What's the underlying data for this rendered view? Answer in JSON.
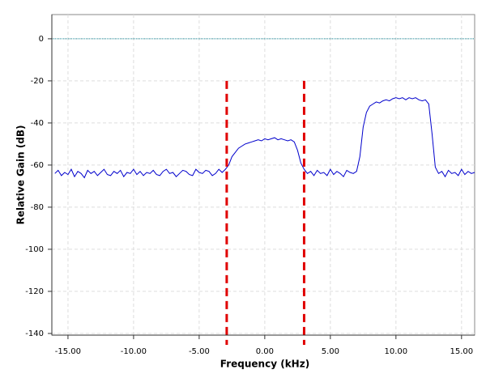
{
  "chart_data": {
    "type": "line",
    "xlabel": "Frequency (kHz)",
    "ylabel": "Relative Gain (dB)",
    "x": [
      -16,
      -15.75,
      -15.5,
      -15.25,
      -15,
      -14.75,
      -14.5,
      -14.25,
      -14,
      -13.75,
      -13.5,
      -13.25,
      -13,
      -12.75,
      -12.5,
      -12.25,
      -12,
      -11.75,
      -11.5,
      -11.25,
      -11,
      -10.75,
      -10.5,
      -10.25,
      -10,
      -9.75,
      -9.5,
      -9.25,
      -9,
      -8.75,
      -8.5,
      -8.25,
      -8,
      -7.75,
      -7.5,
      -7.25,
      -7,
      -6.75,
      -6.5,
      -6.25,
      -6,
      -5.75,
      -5.5,
      -5.25,
      -5,
      -4.75,
      -4.5,
      -4.25,
      -4,
      -3.75,
      -3.5,
      -3.25,
      -3,
      -2.75,
      -2.5,
      -2.25,
      -2,
      -1.75,
      -1.5,
      -1.25,
      -1,
      -0.75,
      -0.5,
      -0.25,
      0,
      0.25,
      0.5,
      0.75,
      1,
      1.25,
      1.5,
      1.75,
      2,
      2.25,
      2.5,
      2.75,
      3,
      3.25,
      3.5,
      3.75,
      4,
      4.25,
      4.5,
      4.75,
      5,
      5.25,
      5.5,
      5.75,
      6,
      6.25,
      6.5,
      6.75,
      7,
      7.25,
      7.5,
      7.75,
      8,
      8.25,
      8.5,
      8.75,
      9,
      9.25,
      9.5,
      9.75,
      10,
      10.25,
      10.5,
      10.75,
      11,
      11.25,
      11.5,
      11.75,
      12,
      12.25,
      12.5,
      12.75,
      13,
      13.25,
      13.5,
      13.75,
      14,
      14.25,
      14.5,
      14.75,
      15,
      15.25,
      15.5,
      15.75,
      16
    ],
    "values": [
      -64,
      -62.5,
      -65,
      -63.5,
      -64.5,
      -62,
      -65.5,
      -63,
      -64,
      -66,
      -62.5,
      -64,
      -63,
      -65,
      -63.5,
      -62,
      -64.5,
      -65,
      -63,
      -64,
      -62.5,
      -65.5,
      -63.5,
      -64,
      -62,
      -64.5,
      -63,
      -65,
      -63.5,
      -64,
      -62.5,
      -64.5,
      -65,
      -63,
      -62,
      -64,
      -63.5,
      -65.5,
      -64,
      -62.5,
      -63,
      -64.5,
      -65,
      -62,
      -63.5,
      -64,
      -62.5,
      -63,
      -65,
      -64,
      -62,
      -63.5,
      -62,
      -60,
      -56,
      -54,
      -52,
      -51,
      -50,
      -49.5,
      -49,
      -48.5,
      -48,
      -48.5,
      -47.5,
      -48,
      -47.5,
      -47,
      -48,
      -47.5,
      -48,
      -48.5,
      -48,
      -49,
      -53,
      -59,
      -62,
      -64,
      -63,
      -65,
      -62.5,
      -64,
      -63.5,
      -65,
      -62,
      -64.5,
      -63,
      -64,
      -65.5,
      -62.5,
      -63.5,
      -64,
      -63,
      -56,
      -42,
      -35,
      -32,
      -31,
      -30,
      -30.5,
      -29.5,
      -29,
      -29.5,
      -28.5,
      -28,
      -28.5,
      -28,
      -29,
      -28,
      -28.5,
      -28,
      -29,
      -29.5,
      -29,
      -31,
      -45,
      -61,
      -64,
      -63,
      -65.5,
      -62.5,
      -64,
      -63.5,
      -65,
      -62,
      -64.5,
      -63,
      -64,
      -63.5
    ],
    "color": "#0000cc",
    "xlim": [
      -16.23,
      16.0
    ],
    "ylim": [
      -140.8,
      11.5
    ],
    "xticks": [
      {
        "value": -15,
        "label": "-15.00"
      },
      {
        "value": -10,
        "label": "-10.00"
      },
      {
        "value": -5,
        "label": "-5.00"
      },
      {
        "value": 0,
        "label": "0.00"
      },
      {
        "value": 5,
        "label": "5.00"
      },
      {
        "value": 10,
        "label": "10.00"
      },
      {
        "value": 15,
        "label": "15.00"
      }
    ],
    "yticks": [
      -140,
      -120,
      -100,
      -80,
      -60,
      -40,
      -20,
      0
    ],
    "grid": true,
    "vlines": {
      "values": [
        -2.9,
        3.0
      ],
      "color": "#e00000"
    },
    "hline": {
      "value": 0,
      "color": "#1a8a9a"
    }
  }
}
